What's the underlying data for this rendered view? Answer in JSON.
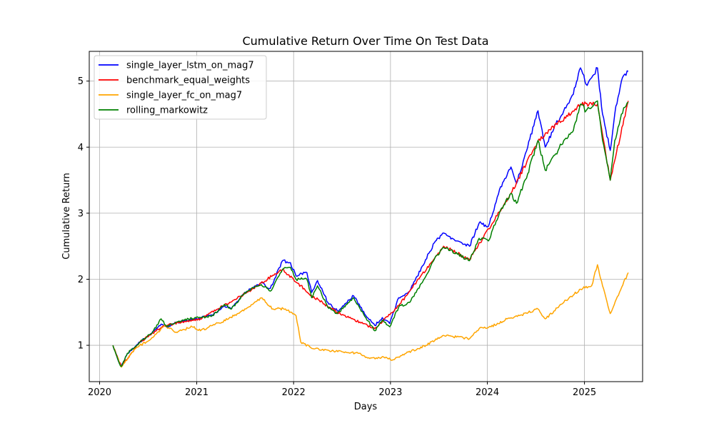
{
  "chart_data": {
    "type": "line",
    "title": "Cumulative Return Over Time On Test Data",
    "xlabel": "Days",
    "ylabel": "Cumulative Return",
    "x_ticks": [
      "2020",
      "2021",
      "2022",
      "2023",
      "2024",
      "2025"
    ],
    "y_ticks": [
      "1",
      "2",
      "3",
      "4",
      "5"
    ],
    "xlim": [
      "2019-11-23",
      "2025-08-08"
    ],
    "ylim": [
      0.45,
      5.45
    ],
    "grid": true,
    "legend_position": "top-left",
    "series": [
      {
        "name": "single_layer_lstm_on_mag7",
        "color": "#0000ff",
        "points": [
          [
            "2020-02-20",
            1.0
          ],
          [
            "2020-03-16",
            0.72
          ],
          [
            "2020-03-23",
            0.68
          ],
          [
            "2020-04-15",
            0.88
          ],
          [
            "2020-06-01",
            1.05
          ],
          [
            "2020-07-15",
            1.18
          ],
          [
            "2020-08-20",
            1.32
          ],
          [
            "2020-09-10",
            1.28
          ],
          [
            "2020-10-15",
            1.34
          ],
          [
            "2020-12-01",
            1.38
          ],
          [
            "2021-01-15",
            1.42
          ],
          [
            "2021-03-05",
            1.47
          ],
          [
            "2021-04-15",
            1.6
          ],
          [
            "2021-05-12",
            1.55
          ],
          [
            "2021-07-01",
            1.8
          ],
          [
            "2021-09-01",
            1.95
          ],
          [
            "2021-10-05",
            1.86
          ],
          [
            "2021-11-20",
            2.28
          ],
          [
            "2021-12-20",
            2.25
          ],
          [
            "2022-01-10",
            2.05
          ],
          [
            "2022-02-20",
            2.1
          ],
          [
            "2022-03-10",
            1.8
          ],
          [
            "2022-04-01",
            1.98
          ],
          [
            "2022-05-10",
            1.65
          ],
          [
            "2022-06-15",
            1.52
          ],
          [
            "2022-08-15",
            1.75
          ],
          [
            "2022-09-30",
            1.45
          ],
          [
            "2022-11-03",
            1.3
          ],
          [
            "2022-12-01",
            1.42
          ],
          [
            "2022-12-29",
            1.33
          ],
          [
            "2023-02-01",
            1.72
          ],
          [
            "2023-03-15",
            1.82
          ],
          [
            "2023-05-01",
            2.2
          ],
          [
            "2023-06-15",
            2.55
          ],
          [
            "2023-07-20",
            2.7
          ],
          [
            "2023-09-10",
            2.58
          ],
          [
            "2023-10-26",
            2.5
          ],
          [
            "2023-12-01",
            2.85
          ],
          [
            "2024-01-05",
            2.8
          ],
          [
            "2024-02-20",
            3.4
          ],
          [
            "2024-03-30",
            3.7
          ],
          [
            "2024-04-20",
            3.45
          ],
          [
            "2024-06-01",
            4.0
          ],
          [
            "2024-07-10",
            4.55
          ],
          [
            "2024-08-06",
            4.0
          ],
          [
            "2024-09-15",
            4.35
          ],
          [
            "2024-10-15",
            4.55
          ],
          [
            "2024-11-20",
            4.8
          ],
          [
            "2024-12-17",
            5.2
          ],
          [
            "2025-01-07",
            4.95
          ],
          [
            "2025-01-28",
            5.05
          ],
          [
            "2025-02-19",
            5.2
          ],
          [
            "2025-03-10",
            4.5
          ],
          [
            "2025-04-08",
            3.95
          ],
          [
            "2025-04-25",
            4.5
          ],
          [
            "2025-05-20",
            5.0
          ],
          [
            "2025-06-15",
            5.15
          ]
        ]
      },
      {
        "name": "benchmark_equal_weights",
        "color": "#ff0000",
        "points": [
          [
            "2020-02-20",
            1.0
          ],
          [
            "2020-03-23",
            0.68
          ],
          [
            "2020-06-01",
            1.05
          ],
          [
            "2020-09-01",
            1.3
          ],
          [
            "2021-01-15",
            1.4
          ],
          [
            "2021-07-01",
            1.78
          ],
          [
            "2021-11-20",
            2.15
          ],
          [
            "2022-03-10",
            1.75
          ],
          [
            "2022-06-15",
            1.5
          ],
          [
            "2022-11-03",
            1.25
          ],
          [
            "2023-02-01",
            1.6
          ],
          [
            "2023-07-20",
            2.5
          ],
          [
            "2023-10-26",
            2.3
          ],
          [
            "2024-03-30",
            3.3
          ],
          [
            "2024-07-10",
            4.1
          ],
          [
            "2024-12-17",
            4.65
          ],
          [
            "2025-02-19",
            4.65
          ],
          [
            "2025-04-08",
            3.5
          ],
          [
            "2025-06-15",
            4.7
          ]
        ]
      },
      {
        "name": "single_layer_fc_on_mag7",
        "color": "#ffa500",
        "points": [
          [
            "2020-02-20",
            1.0
          ],
          [
            "2020-03-23",
            0.67
          ],
          [
            "2020-05-15",
            0.95
          ],
          [
            "2020-07-20",
            1.12
          ],
          [
            "2020-09-01",
            1.3
          ],
          [
            "2020-10-15",
            1.2
          ],
          [
            "2020-12-15",
            1.28
          ],
          [
            "2021-01-15",
            1.22
          ],
          [
            "2021-03-01",
            1.3
          ],
          [
            "2021-05-01",
            1.4
          ],
          [
            "2021-07-01",
            1.55
          ],
          [
            "2021-09-01",
            1.72
          ],
          [
            "2021-10-15",
            1.55
          ],
          [
            "2021-12-01",
            1.55
          ],
          [
            "2022-01-10",
            1.45
          ],
          [
            "2022-01-28",
            1.05
          ],
          [
            "2022-03-15",
            0.95
          ],
          [
            "2022-05-15",
            0.92
          ],
          [
            "2022-07-15",
            0.9
          ],
          [
            "2022-09-01",
            0.88
          ],
          [
            "2022-10-15",
            0.8
          ],
          [
            "2022-12-15",
            0.82
          ],
          [
            "2023-01-10",
            0.78
          ],
          [
            "2023-03-01",
            0.88
          ],
          [
            "2023-05-15",
            1.0
          ],
          [
            "2023-07-20",
            1.15
          ],
          [
            "2023-10-26",
            1.1
          ],
          [
            "2023-12-01",
            1.25
          ],
          [
            "2024-01-15",
            1.28
          ],
          [
            "2024-03-15",
            1.4
          ],
          [
            "2024-05-01",
            1.45
          ],
          [
            "2024-07-10",
            1.55
          ],
          [
            "2024-08-06",
            1.4
          ],
          [
            "2024-10-15",
            1.65
          ],
          [
            "2024-12-17",
            1.85
          ],
          [
            "2025-01-28",
            1.9
          ],
          [
            "2025-02-19",
            2.22
          ],
          [
            "2025-03-10",
            1.9
          ],
          [
            "2025-04-08",
            1.48
          ],
          [
            "2025-05-01",
            1.7
          ],
          [
            "2025-06-15",
            2.1
          ]
        ]
      },
      {
        "name": "rolling_markowitz",
        "color": "#008000",
        "points": [
          [
            "2020-02-20",
            1.0
          ],
          [
            "2020-03-16",
            0.72
          ],
          [
            "2020-03-23",
            0.68
          ],
          [
            "2020-04-15",
            0.88
          ],
          [
            "2020-06-01",
            1.05
          ],
          [
            "2020-07-15",
            1.18
          ],
          [
            "2020-08-20",
            1.4
          ],
          [
            "2020-09-10",
            1.28
          ],
          [
            "2020-10-15",
            1.35
          ],
          [
            "2020-12-01",
            1.4
          ],
          [
            "2021-01-15",
            1.42
          ],
          [
            "2021-03-05",
            1.45
          ],
          [
            "2021-04-15",
            1.62
          ],
          [
            "2021-05-12",
            1.55
          ],
          [
            "2021-07-01",
            1.8
          ],
          [
            "2021-09-01",
            1.92
          ],
          [
            "2021-10-05",
            1.82
          ],
          [
            "2021-11-20",
            2.15
          ],
          [
            "2021-12-20",
            2.18
          ],
          [
            "2022-01-10",
            2.0
          ],
          [
            "2022-02-20",
            2.0
          ],
          [
            "2022-03-10",
            1.72
          ],
          [
            "2022-04-01",
            1.9
          ],
          [
            "2022-05-10",
            1.58
          ],
          [
            "2022-06-15",
            1.48
          ],
          [
            "2022-08-15",
            1.72
          ],
          [
            "2022-09-30",
            1.42
          ],
          [
            "2022-11-03",
            1.22
          ],
          [
            "2022-12-01",
            1.38
          ],
          [
            "2022-12-29",
            1.28
          ],
          [
            "2023-02-01",
            1.58
          ],
          [
            "2023-03-15",
            1.65
          ],
          [
            "2023-05-01",
            1.95
          ],
          [
            "2023-06-15",
            2.3
          ],
          [
            "2023-07-20",
            2.48
          ],
          [
            "2023-09-10",
            2.38
          ],
          [
            "2023-10-26",
            2.28
          ],
          [
            "2023-12-01",
            2.62
          ],
          [
            "2024-01-05",
            2.58
          ],
          [
            "2024-02-20",
            3.05
          ],
          [
            "2024-03-30",
            3.3
          ],
          [
            "2024-04-20",
            3.15
          ],
          [
            "2024-06-01",
            3.6
          ],
          [
            "2024-07-10",
            4.1
          ],
          [
            "2024-08-06",
            3.65
          ],
          [
            "2024-09-15",
            3.9
          ],
          [
            "2024-10-15",
            4.1
          ],
          [
            "2024-11-20",
            4.25
          ],
          [
            "2024-12-17",
            4.65
          ],
          [
            "2025-01-07",
            4.55
          ],
          [
            "2025-01-28",
            4.6
          ],
          [
            "2025-02-19",
            4.7
          ],
          [
            "2025-03-10",
            4.1
          ],
          [
            "2025-04-08",
            3.5
          ],
          [
            "2025-04-25",
            4.1
          ],
          [
            "2025-05-20",
            4.5
          ],
          [
            "2025-06-15",
            4.68
          ]
        ]
      }
    ]
  }
}
